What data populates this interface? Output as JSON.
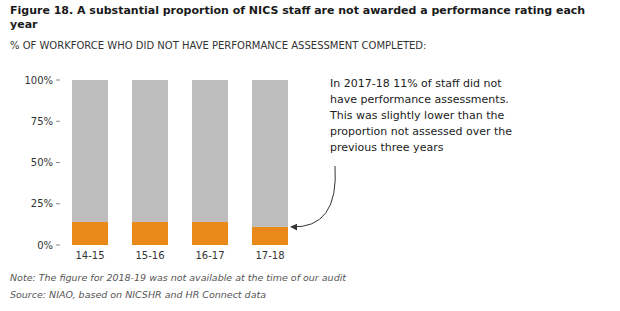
{
  "chart_data": {
    "type": "bar",
    "stacked": true,
    "title": "Figure 18.  A substantial proportion of NICS staff are not awarded a performance rating each year",
    "subtitle": "% OF WORKFORCE WHO DID NOT HAVE PERFORMANCE ASSESSMENT COMPLETED:",
    "categories": [
      "14-15",
      "15-16",
      "16-17",
      "17-18"
    ],
    "series": [
      {
        "color": "#E8891A",
        "values": [
          14,
          14,
          14,
          11
        ]
      },
      {
        "color": "#BDBDBD",
        "values": [
          86,
          86,
          86,
          89
        ]
      }
    ],
    "ylim": [
      0,
      100
    ],
    "yticks": [
      {
        "value": 0,
        "label": "0%"
      },
      {
        "value": 25,
        "label": "25%"
      },
      {
        "value": 50,
        "label": "50%"
      },
      {
        "value": 75,
        "label": "75%"
      },
      {
        "value": 100,
        "label": "100%"
      }
    ],
    "grid": false,
    "annotations": [
      "In 2017-18 11% of staff did not",
      "have performance assessments.",
      "This was slightly lower than the",
      "proportion not assessed over the",
      "previous three years"
    ],
    "note": "Note: The figure for 2018-19 was not available at the time of our audit",
    "source": "Source: NIAO, based on NICSHR and HR Connect data"
  }
}
